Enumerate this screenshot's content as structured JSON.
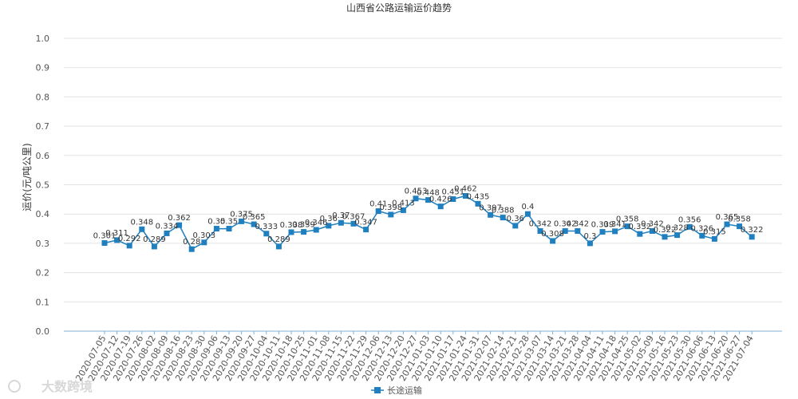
{
  "chart_data": {
    "type": "line",
    "title": "山西省公路运输运价趋势",
    "ylabel": "运价(元/吨公里)",
    "xlabel": "",
    "ylim": [
      0.0,
      1.0
    ],
    "yticks": [
      "0.0",
      "0.1",
      "0.2",
      "0.3",
      "0.4",
      "0.5",
      "0.6",
      "0.7",
      "0.8",
      "0.9",
      "1.0"
    ],
    "grid": true,
    "legend": "bottom-center",
    "line_color": "#1f7fbf",
    "categories": [
      "2020-07-05",
      "2020-07-12",
      "2020-07-19",
      "2020-07-26",
      "2020-08-02",
      "2020-08-09",
      "2020-08-16",
      "2020-08-23",
      "2020-08-30",
      "2020-09-06",
      "2020-09-13",
      "2020-09-20",
      "2020-09-27",
      "2020-10-04",
      "2020-10-11",
      "2020-10-18",
      "2020-10-25",
      "2020-11-01",
      "2020-11-08",
      "2020-11-15",
      "2020-11-22",
      "2020-11-29",
      "2020-12-06",
      "2020-12-13",
      "2020-12-20",
      "2020-12-27",
      "2021-01-03",
      "2021-01-10",
      "2021-01-17",
      "2021-01-24",
      "2021-01-31",
      "2021-02-07",
      "2021-02-14",
      "2021-02-21",
      "2021-02-28",
      "2021-03-07",
      "2021-03-14",
      "2021-03-21",
      "2021-03-28",
      "2021-04-04",
      "2021-04-11",
      "2021-04-18",
      "2021-04-25",
      "2021-05-02",
      "2021-05-09",
      "2021-05-16",
      "2021-05-23",
      "2021-05-30",
      "2021-06-06",
      "2021-06-13",
      "2021-06-20",
      "2021-06-27",
      "2021-07-04"
    ],
    "series": [
      {
        "name": "长途运输",
        "values": [
          0.301,
          0.311,
          0.292,
          0.348,
          0.289,
          0.334,
          0.362,
          0.28,
          0.303,
          0.35,
          0.35,
          0.375,
          0.365,
          0.333,
          0.289,
          0.338,
          0.339,
          0.346,
          0.36,
          0.37,
          0.367,
          0.347,
          0.41,
          0.398,
          0.413,
          0.453,
          0.448,
          0.426,
          0.451,
          0.462,
          0.435,
          0.397,
          0.388,
          0.36,
          0.4,
          0.342,
          0.308,
          0.342,
          0.342,
          0.3,
          0.339,
          0.341,
          0.358,
          0.332,
          0.342,
          0.322,
          0.328,
          0.356,
          0.326,
          0.315,
          0.365,
          0.358,
          0.322
        ],
        "labels": [
          "0.301",
          "0.311",
          "0.292",
          "0.348",
          "0.289",
          "0.334",
          "0.362",
          "0.28",
          "0.303",
          "0.35",
          "0.35",
          "0.375",
          "0.365",
          "0.333",
          "0.289",
          "0.338",
          "0.339",
          "0.346",
          "0.36",
          "0.37",
          "0.367",
          "0.347",
          "0.41",
          "0.398",
          "0.413",
          "0.453",
          "0.448",
          "0.426",
          "0.451",
          "0.462",
          "0.435",
          "0.397",
          "0.388",
          "0.36",
          "0.4",
          "0.342",
          "0.308",
          "0.342",
          "0.342",
          "0.3",
          "0.339",
          "0.341",
          "0.358",
          "0.332",
          "0.342",
          "0.322",
          "0.328",
          "0.356",
          "0.326",
          "0.315",
          "0.365",
          "0.358",
          "0.322"
        ]
      }
    ]
  },
  "watermark": "大数跨境"
}
